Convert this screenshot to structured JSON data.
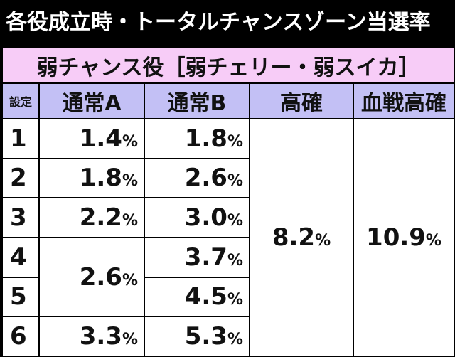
{
  "title": "各役成立時・トータルチャンスゾーン当選率",
  "subtitle": "弱チャンス役［弱チェリー・弱スイカ］",
  "headers": {
    "setting": "設定",
    "normal_a": "通常A",
    "normal_b": "通常B",
    "kouka": "高確",
    "kessen": "血戦高確"
  },
  "settings": [
    "1",
    "2",
    "3",
    "4",
    "5",
    "6"
  ],
  "normal_a": {
    "s1": "1.4",
    "s2": "1.8",
    "s3": "2.2",
    "s45": "2.6",
    "s6": "3.3"
  },
  "normal_b": {
    "s1": "1.8",
    "s2": "2.6",
    "s3": "3.0",
    "s4": "3.7",
    "s5": "4.5",
    "s6": "5.3"
  },
  "kouka": "8.2",
  "kessen": "10.9",
  "unit": "%",
  "colors": {
    "subtitle_bg": "#f7ccf7",
    "header_bg": "#c3c0f5",
    "title_bg": "#000000"
  }
}
